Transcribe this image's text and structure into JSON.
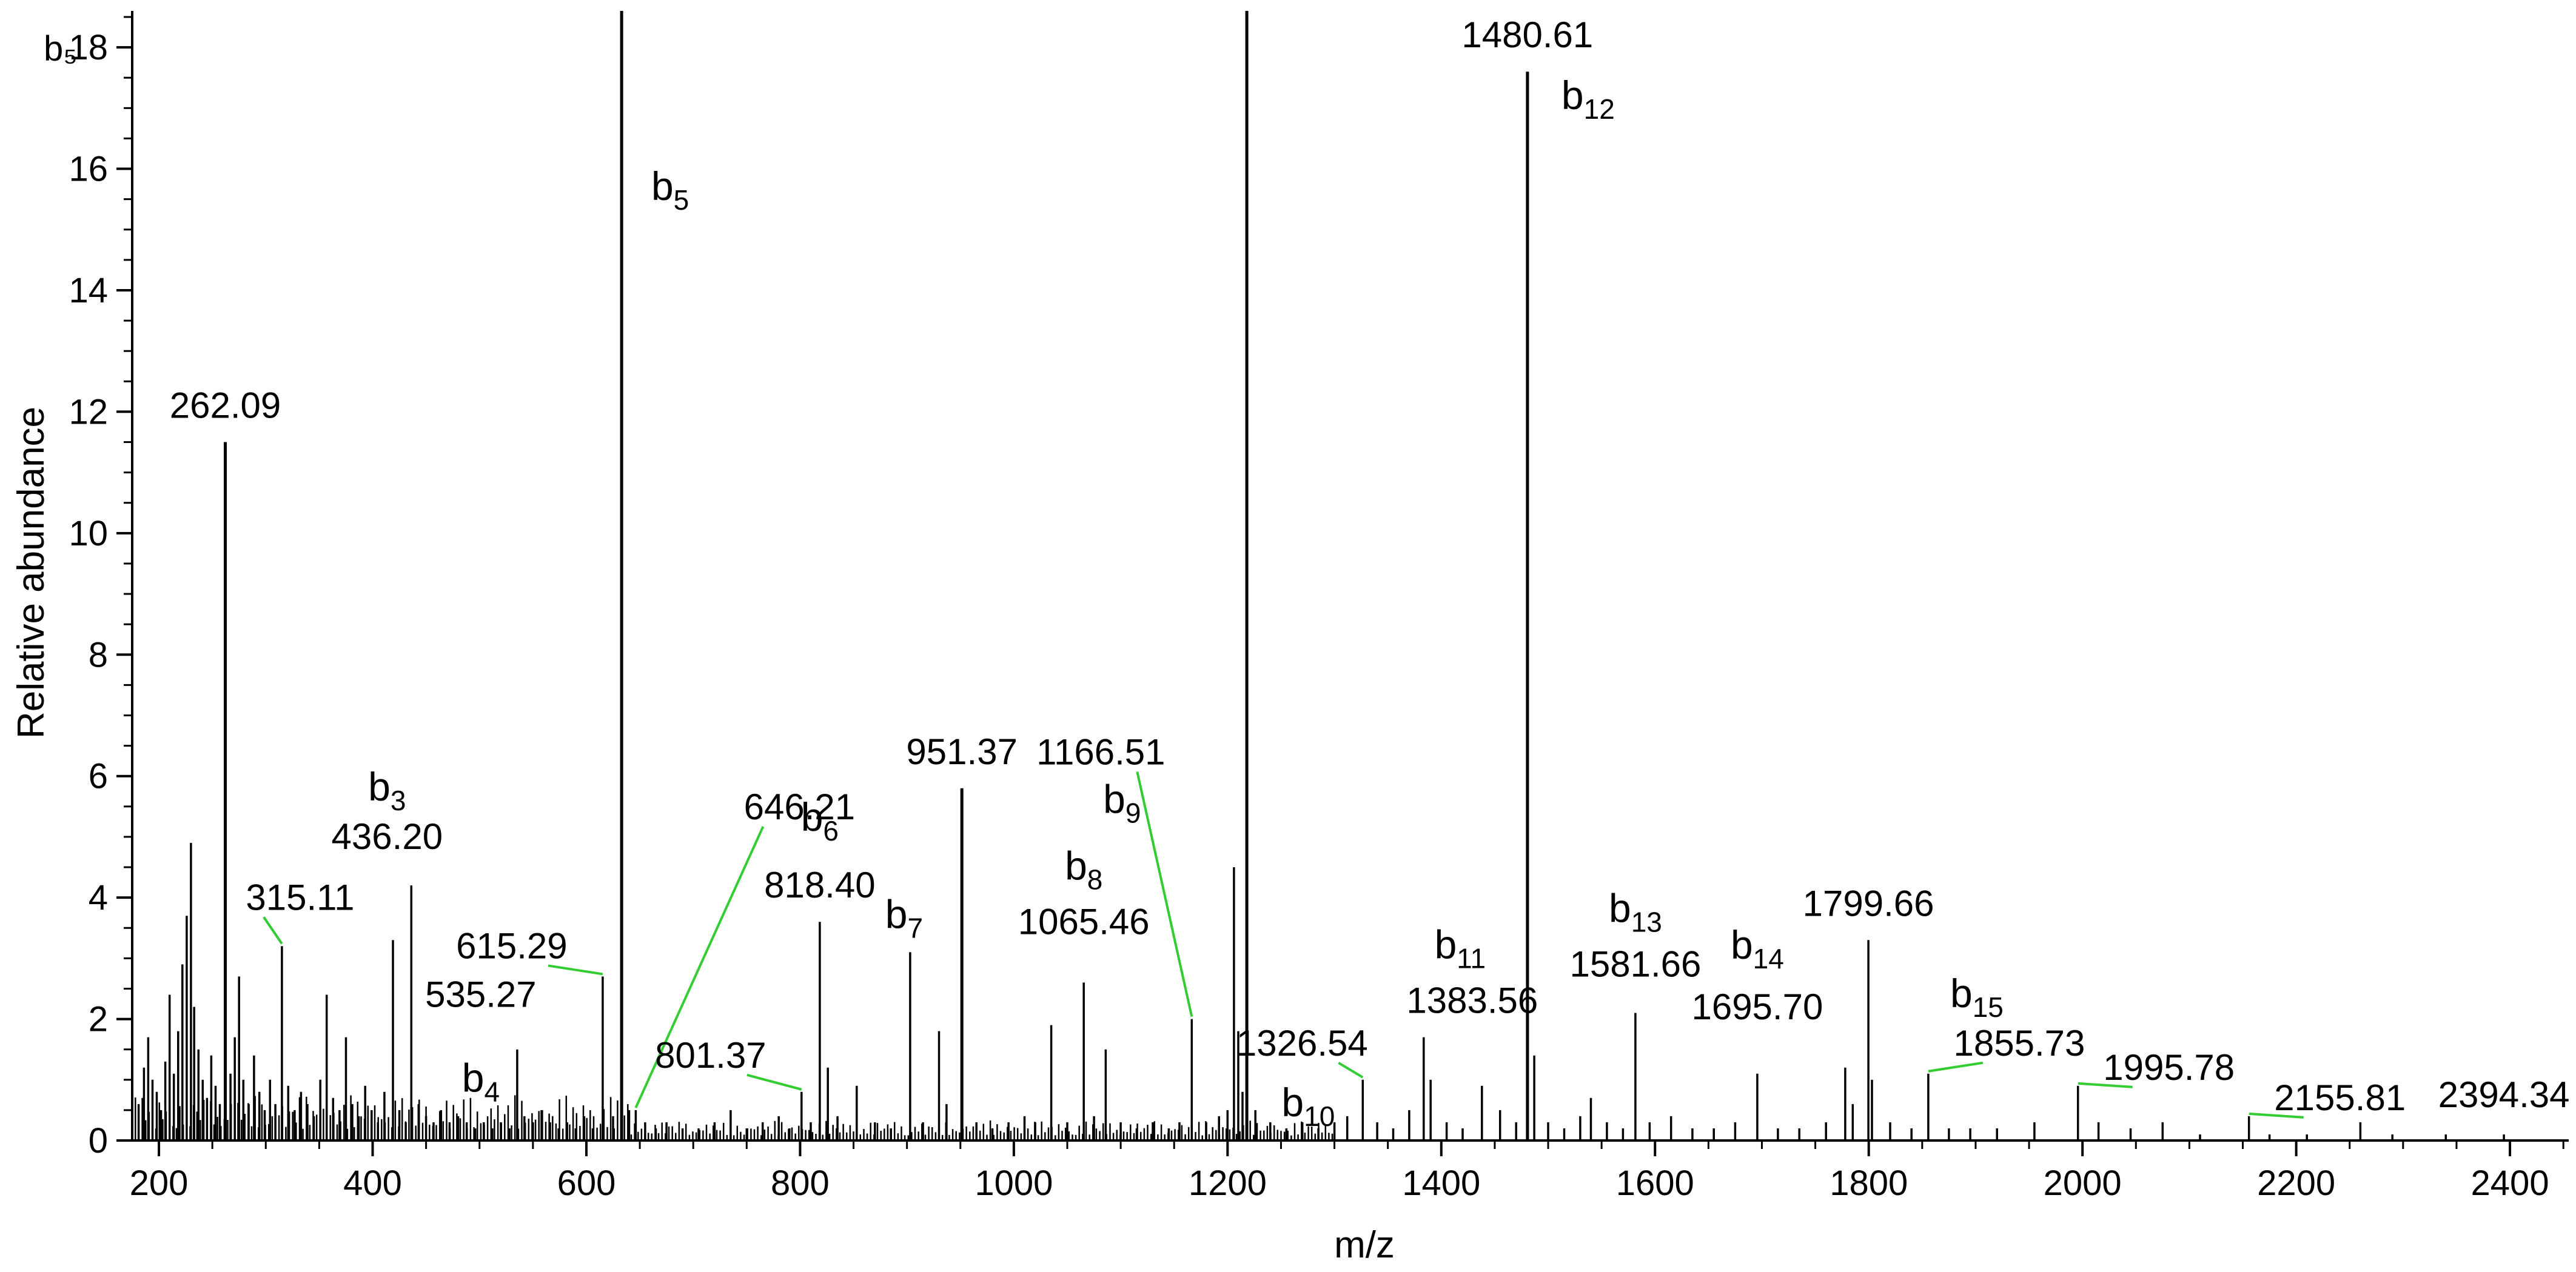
{
  "chart_data": {
    "type": "bar",
    "title": "",
    "xlabel": "m/z",
    "ylabel": "Relative abundance",
    "xlim": [
      175,
      2455
    ],
    "ylim": [
      0,
      18.6
    ],
    "x_ticks": [
      200,
      400,
      600,
      800,
      1000,
      1200,
      1400,
      1600,
      1800,
      2000,
      2200,
      2400
    ],
    "y_ticks": [
      0,
      2,
      4,
      6,
      8,
      10,
      12,
      14,
      16,
      18
    ],
    "y_top_label": "b₅",
    "grid": false,
    "legend": "none",
    "line_color": "#000000",
    "leader_color": "#33cc33",
    "labeled_peaks": [
      {
        "x": 262.09,
        "y": 11.5,
        "label": "262.09",
        "ion": ""
      },
      {
        "x": 315.11,
        "y": 3.2,
        "label": "315.11",
        "ion": ""
      },
      {
        "x": 436.2,
        "y": 4.2,
        "label": "436.20",
        "ion": "b3"
      },
      {
        "x": 535.27,
        "y": 1.5,
        "label": "535.27",
        "ion": "b4"
      },
      {
        "x": 615.29,
        "y": 2.7,
        "label": "615.29",
        "ion": ""
      },
      {
        "x": 646.21,
        "y": 0.5,
        "label": "646.21",
        "ion": ""
      },
      {
        "x": 801.37,
        "y": 0.8,
        "label": "801.37",
        "ion": ""
      },
      {
        "x": 818.4,
        "y": 3.6,
        "label": "818.40",
        "ion": "b6"
      },
      {
        "x": 951.37,
        "y": 5.8,
        "label": "951.37",
        "ion": ""
      },
      {
        "x": 1065.46,
        "y": 2.6,
        "label": "1065.46",
        "ion": "b8"
      },
      {
        "x": 1166.51,
        "y": 2.0,
        "label": "1166.51",
        "ion": "b9"
      },
      {
        "x": 1326.54,
        "y": 1.0,
        "label": "1326.54",
        "ion": "b10"
      },
      {
        "x": 1383.56,
        "y": 1.7,
        "label": "1383.56",
        "ion": "b11"
      },
      {
        "x": 1480.61,
        "y": 17.6,
        "label": "1480.61",
        "ion": "b12"
      },
      {
        "x": 1581.66,
        "y": 2.1,
        "label": "1581.66",
        "ion": "b13"
      },
      {
        "x": 1695.7,
        "y": 1.1,
        "label": "1695.70",
        "ion": "b14"
      },
      {
        "x": 1799.66,
        "y": 3.3,
        "label": "1799.66",
        "ion": ""
      },
      {
        "x": 1855.73,
        "y": 1.1,
        "label": "1855.73",
        "ion": "b15"
      },
      {
        "x": 1995.78,
        "y": 0.9,
        "label": "1995.78",
        "ion": ""
      },
      {
        "x": 2155.81,
        "y": 0.4,
        "label": "2155.81",
        "ion": ""
      },
      {
        "x": 2394.34,
        "y": 0.1,
        "label": "2394.34",
        "ion": ""
      }
    ],
    "ion_only_labels": [
      {
        "ion": "b5",
        "x": 633,
        "y": 18.6
      },
      {
        "ion": "b7",
        "x": 903,
        "y": 3.1
      }
    ],
    "peaks": [
      [
        181,
        0.6
      ],
      [
        186,
        1.2
      ],
      [
        190,
        1.7
      ],
      [
        194,
        1.0
      ],
      [
        198,
        0.8
      ],
      [
        202,
        0.5
      ],
      [
        206,
        1.3
      ],
      [
        210,
        2.4
      ],
      [
        214,
        1.1
      ],
      [
        218,
        1.8
      ],
      [
        222,
        2.9
      ],
      [
        226,
        3.7
      ],
      [
        230,
        4.9
      ],
      [
        233,
        2.2
      ],
      [
        237,
        1.5
      ],
      [
        241,
        1.0
      ],
      [
        245,
        0.7
      ],
      [
        249,
        1.4
      ],
      [
        253,
        0.9
      ],
      [
        257,
        0.6
      ],
      [
        262.09,
        11.5
      ],
      [
        267,
        1.1
      ],
      [
        271,
        1.7
      ],
      [
        275,
        2.7
      ],
      [
        279,
        1.0
      ],
      [
        284,
        0.6
      ],
      [
        289,
        1.4
      ],
      [
        294,
        0.8
      ],
      [
        299,
        0.5
      ],
      [
        304,
        1.0
      ],
      [
        309,
        0.6
      ],
      [
        315.11,
        3.2
      ],
      [
        321,
        0.9
      ],
      [
        327,
        0.5
      ],
      [
        333,
        0.8
      ],
      [
        339,
        0.6
      ],
      [
        345,
        0.4
      ],
      [
        351,
        1.0
      ],
      [
        357,
        2.4
      ],
      [
        363,
        0.7
      ],
      [
        369,
        0.5
      ],
      [
        375,
        1.7
      ],
      [
        381,
        0.6
      ],
      [
        387,
        0.4
      ],
      [
        393,
        0.9
      ],
      [
        399,
        0.5
      ],
      [
        405,
        0.3
      ],
      [
        411,
        0.8
      ],
      [
        419,
        3.3
      ],
      [
        425,
        0.5
      ],
      [
        431,
        0.3
      ],
      [
        436.2,
        4.2
      ],
      [
        443,
        0.6
      ],
      [
        450,
        0.4
      ],
      [
        457,
        0.3
      ],
      [
        464,
        0.5
      ],
      [
        472,
        0.3
      ],
      [
        480,
        0.4
      ],
      [
        488,
        0.3
      ],
      [
        496,
        0.2
      ],
      [
        504,
        0.3
      ],
      [
        512,
        0.2
      ],
      [
        520,
        0.3
      ],
      [
        528,
        0.2
      ],
      [
        535.27,
        1.5
      ],
      [
        542,
        0.4
      ],
      [
        550,
        0.3
      ],
      [
        558,
        0.5
      ],
      [
        566,
        0.3
      ],
      [
        574,
        0.2
      ],
      [
        582,
        0.3
      ],
      [
        590,
        0.2
      ],
      [
        598,
        0.4
      ],
      [
        606,
        0.2
      ],
      [
        615.29,
        2.7
      ],
      [
        625,
        0.4
      ],
      [
        633,
        18.6
      ],
      [
        640,
        0.5
      ],
      [
        646.21,
        0.5
      ],
      [
        655,
        0.3
      ],
      [
        665,
        0.2
      ],
      [
        675,
        0.3
      ],
      [
        690,
        0.2
      ],
      [
        705,
        0.2
      ],
      [
        720,
        0.3
      ],
      [
        735,
        0.5
      ],
      [
        750,
        0.2
      ],
      [
        765,
        0.3
      ],
      [
        780,
        0.4
      ],
      [
        790,
        0.2
      ],
      [
        801.37,
        0.8
      ],
      [
        810,
        0.3
      ],
      [
        818.4,
        3.6
      ],
      [
        826,
        1.2
      ],
      [
        835,
        0.4
      ],
      [
        853,
        0.9
      ],
      [
        870,
        0.3
      ],
      [
        885,
        0.2
      ],
      [
        903,
        3.1
      ],
      [
        915,
        0.3
      ],
      [
        930,
        1.8
      ],
      [
        937,
        0.6
      ],
      [
        951.37,
        5.8
      ],
      [
        965,
        0.3
      ],
      [
        980,
        0.2
      ],
      [
        995,
        0.3
      ],
      [
        1010,
        0.4
      ],
      [
        1020,
        0.3
      ],
      [
        1035,
        1.9
      ],
      [
        1050,
        0.3
      ],
      [
        1065.46,
        2.6
      ],
      [
        1075,
        0.4
      ],
      [
        1086,
        1.5
      ],
      [
        1100,
        0.3
      ],
      [
        1115,
        0.2
      ],
      [
        1130,
        0.3
      ],
      [
        1145,
        0.2
      ],
      [
        1155,
        0.3
      ],
      [
        1166.51,
        2.0
      ],
      [
        1180,
        0.3
      ],
      [
        1192,
        0.4
      ],
      [
        1200,
        0.5
      ],
      [
        1206,
        4.5
      ],
      [
        1210,
        1.8
      ],
      [
        1214,
        0.8
      ],
      [
        1218,
        18.6
      ],
      [
        1226,
        0.5
      ],
      [
        1240,
        0.3
      ],
      [
        1255,
        0.2
      ],
      [
        1270,
        0.3
      ],
      [
        1285,
        0.2
      ],
      [
        1300,
        0.3
      ],
      [
        1312,
        0.4
      ],
      [
        1326.54,
        1.0
      ],
      [
        1340,
        0.3
      ],
      [
        1355,
        0.2
      ],
      [
        1370,
        0.5
      ],
      [
        1383.56,
        1.7
      ],
      [
        1390,
        1.0
      ],
      [
        1405,
        0.3
      ],
      [
        1420,
        0.2
      ],
      [
        1438,
        0.9
      ],
      [
        1455,
        0.5
      ],
      [
        1470,
        0.3
      ],
      [
        1480.61,
        17.6
      ],
      [
        1487,
        1.4
      ],
      [
        1500,
        0.3
      ],
      [
        1515,
        0.2
      ],
      [
        1530,
        0.4
      ],
      [
        1540,
        0.7
      ],
      [
        1555,
        0.3
      ],
      [
        1570,
        0.2
      ],
      [
        1581.66,
        2.1
      ],
      [
        1595,
        0.3
      ],
      [
        1615,
        0.4
      ],
      [
        1635,
        0.2
      ],
      [
        1655,
        0.2
      ],
      [
        1675,
        0.3
      ],
      [
        1695.7,
        1.1
      ],
      [
        1715,
        0.2
      ],
      [
        1735,
        0.2
      ],
      [
        1760,
        0.3
      ],
      [
        1778,
        1.2
      ],
      [
        1785,
        0.6
      ],
      [
        1799.66,
        3.3
      ],
      [
        1803,
        1.0
      ],
      [
        1820,
        0.3
      ],
      [
        1840,
        0.2
      ],
      [
        1855.73,
        1.1
      ],
      [
        1875,
        0.2
      ],
      [
        1895,
        0.2
      ],
      [
        1920,
        0.2
      ],
      [
        1955,
        0.3
      ],
      [
        1995.78,
        0.9
      ],
      [
        2015,
        0.3
      ],
      [
        2045,
        0.2
      ],
      [
        2075,
        0.3
      ],
      [
        2110,
        0.1
      ],
      [
        2155.81,
        0.4
      ],
      [
        2175,
        0.1
      ],
      [
        2210,
        0.1
      ],
      [
        2260,
        0.3
      ],
      [
        2290,
        0.1
      ],
      [
        2340,
        0.1
      ],
      [
        2394.34,
        0.1
      ]
    ]
  }
}
